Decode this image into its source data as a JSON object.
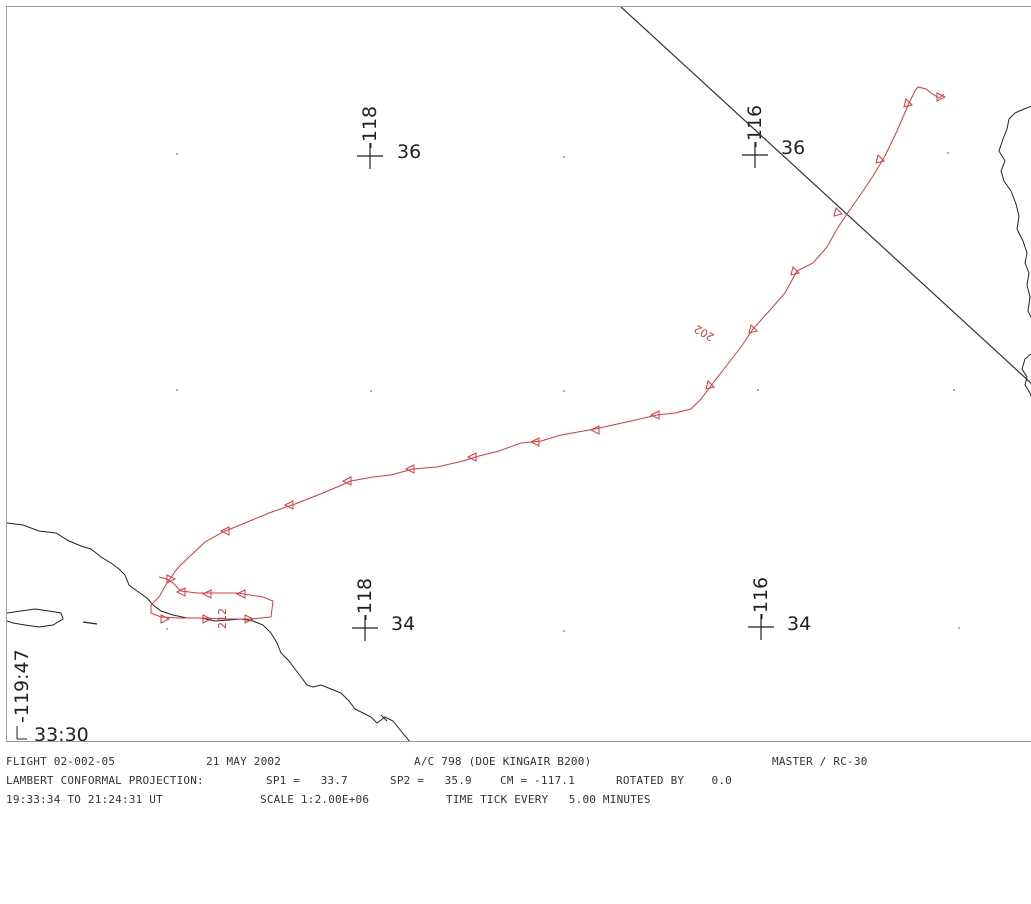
{
  "map": {
    "graticule": {
      "lon_labels": [
        "-118",
        "-116",
        "-118",
        "-116"
      ],
      "lat_labels": [
        "36",
        "36",
        "34",
        "34"
      ]
    },
    "corner_labels": {
      "left_lon": "-119:47",
      "bottom_lat": "33:30"
    },
    "track": {
      "color": "#d83a3a",
      "time_labels": [
        "202",
        "212"
      ]
    },
    "coastline_color": "#222222",
    "boundary_color": "#333333"
  },
  "footer": {
    "flight": "FLIGHT 02-002-05",
    "date": "21 MAY 2002",
    "aircraft": "A/C 798 (DOE KINGAIR B200)",
    "master": "MASTER / RC-30",
    "projection": "LAMBERT CONFORMAL PROJECTION:",
    "sp1": "SP1 =   33.7",
    "sp2": "SP2 =   35.9",
    "cm": "CM = -117.1",
    "rotated": "ROTATED BY    0.0",
    "time_range": "19:33:34 TO 21:24:31 UT",
    "scale": "SCALE 1:2.00E+06",
    "time_tick": "TIME TICK EVERY   5.00 MINUTES"
  }
}
